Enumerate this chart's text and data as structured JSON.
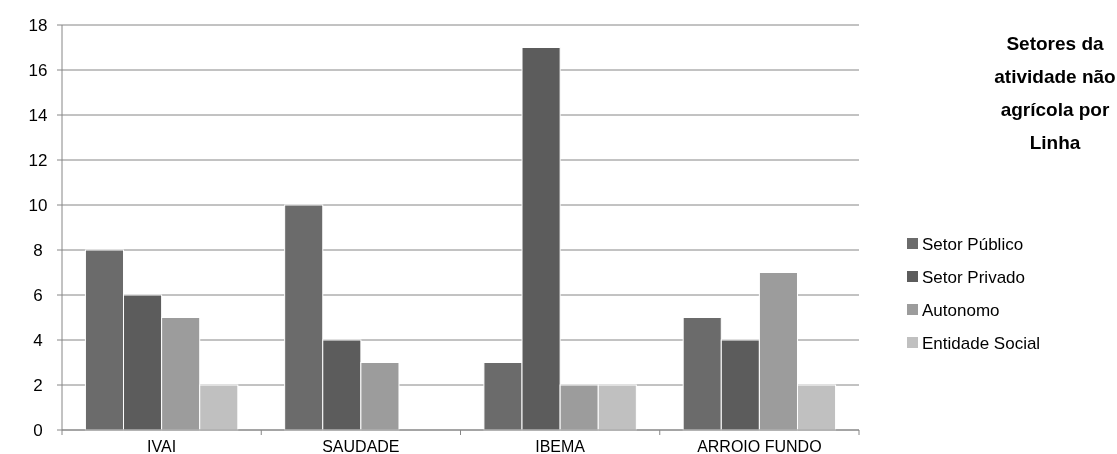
{
  "chart_data": {
    "type": "bar",
    "legend_title": "Setores da atividade não agrícola por Linha",
    "categories": [
      "IVAI",
      "SAUDADE",
      "IBEMA",
      "ARROIO FUNDO"
    ],
    "series": [
      {
        "name": "Setor Público",
        "color": "#6b6b6b",
        "values": [
          8,
          10,
          3,
          5
        ]
      },
      {
        "name": "Setor Privado",
        "color": "#5c5c5c",
        "values": [
          6,
          4,
          17,
          4
        ]
      },
      {
        "name": "Autonomo",
        "color": "#9c9c9c",
        "values": [
          5,
          3,
          2,
          7
        ]
      },
      {
        "name": "Entidade Social",
        "color": "#c0c0c0",
        "values": [
          2,
          0,
          2,
          2
        ]
      }
    ],
    "ylim": [
      0,
      18
    ],
    "yticks": [
      0,
      2,
      4,
      6,
      8,
      10,
      12,
      14,
      16,
      18
    ],
    "grid": "y",
    "legend": "right"
  }
}
